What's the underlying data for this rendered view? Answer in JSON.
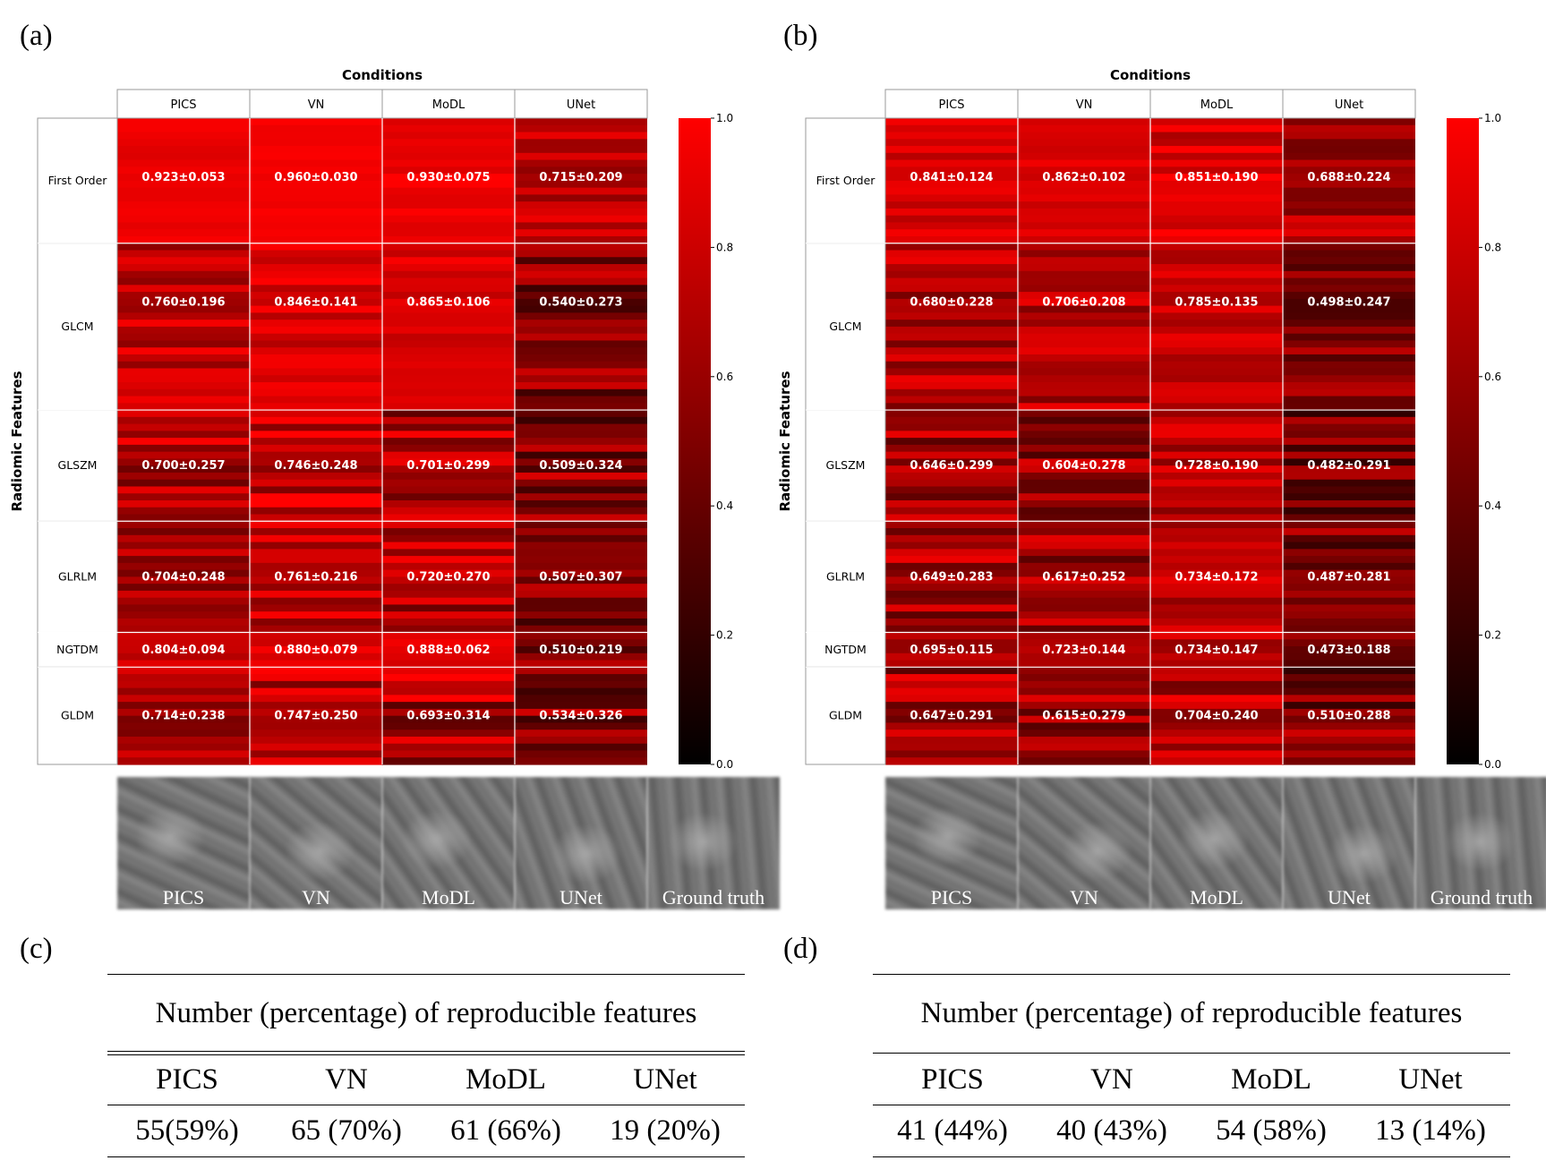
{
  "panels": {
    "a": "(a)",
    "b": "(b)",
    "c": "(c)",
    "d": "(d)"
  },
  "chart_data": [
    {
      "type": "heatmap",
      "panel": "(a)",
      "xlabel": "Conditions",
      "ylabel": "Radiomic Features",
      "columns": [
        "PICS",
        "VN",
        "MoDL",
        "UNet"
      ],
      "groups": [
        "First Order",
        "GLCM",
        "GLSZM",
        "GLRLM",
        "NGTDM",
        "GLDM"
      ],
      "group_feature_counts": [
        18,
        24,
        16,
        16,
        5,
        14
      ],
      "cell_labels": [
        [
          "0.923±0.053",
          "0.960±0.030",
          "0.930±0.075",
          "0.715±0.209"
        ],
        [
          "0.760±0.196",
          "0.846±0.141",
          "0.865±0.106",
          "0.540±0.273"
        ],
        [
          "0.700±0.257",
          "0.746±0.248",
          "0.701±0.299",
          "0.509±0.324"
        ],
        [
          "0.704±0.248",
          "0.761±0.216",
          "0.720±0.270",
          "0.507±0.307"
        ],
        [
          "0.804±0.094",
          "0.880±0.079",
          "0.888±0.062",
          "0.510±0.219"
        ],
        [
          "0.714±0.238",
          "0.747±0.250",
          "0.693±0.314",
          "0.534±0.326"
        ]
      ],
      "means": [
        [
          0.923,
          0.96,
          0.93,
          0.715
        ],
        [
          0.76,
          0.846,
          0.865,
          0.54
        ],
        [
          0.7,
          0.746,
          0.701,
          0.509
        ],
        [
          0.704,
          0.761,
          0.72,
          0.507
        ],
        [
          0.804,
          0.88,
          0.888,
          0.51
        ],
        [
          0.714,
          0.747,
          0.693,
          0.534
        ]
      ],
      "stds": [
        [
          0.053,
          0.03,
          0.075,
          0.209
        ],
        [
          0.196,
          0.141,
          0.106,
          0.273
        ],
        [
          0.257,
          0.248,
          0.299,
          0.324
        ],
        [
          0.248,
          0.216,
          0.27,
          0.307
        ],
        [
          0.094,
          0.079,
          0.062,
          0.219
        ],
        [
          0.238,
          0.25,
          0.314,
          0.326
        ]
      ],
      "colorbar_ticks": [
        "0.0",
        "0.2",
        "0.4",
        "0.6",
        "0.8",
        "1.0"
      ],
      "colorbar_range": [
        0,
        1
      ],
      "colormap": [
        "#000000",
        "#ff0000"
      ]
    },
    {
      "type": "heatmap",
      "panel": "(b)",
      "xlabel": "Conditions",
      "ylabel": "Radiomic Features",
      "columns": [
        "PICS",
        "VN",
        "MoDL",
        "UNet"
      ],
      "groups": [
        "First Order",
        "GLCM",
        "GLSZM",
        "GLRLM",
        "NGTDM",
        "GLDM"
      ],
      "group_feature_counts": [
        18,
        24,
        16,
        16,
        5,
        14
      ],
      "cell_labels": [
        [
          "0.841±0.124",
          "0.862±0.102",
          "0.851±0.190",
          "0.688±0.224"
        ],
        [
          "0.680±0.228",
          "0.706±0.208",
          "0.785±0.135",
          "0.498±0.247"
        ],
        [
          "0.646±0.299",
          "0.604±0.278",
          "0.728±0.190",
          "0.482±0.291"
        ],
        [
          "0.649±0.283",
          "0.617±0.252",
          "0.734±0.172",
          "0.487±0.281"
        ],
        [
          "0.695±0.115",
          "0.723±0.144",
          "0.734±0.147",
          "0.473±0.188"
        ],
        [
          "0.647±0.291",
          "0.615±0.279",
          "0.704±0.240",
          "0.510±0.288"
        ]
      ],
      "means": [
        [
          0.841,
          0.862,
          0.851,
          0.688
        ],
        [
          0.68,
          0.706,
          0.785,
          0.498
        ],
        [
          0.646,
          0.604,
          0.728,
          0.482
        ],
        [
          0.649,
          0.617,
          0.734,
          0.487
        ],
        [
          0.695,
          0.723,
          0.734,
          0.473
        ],
        [
          0.647,
          0.615,
          0.704,
          0.51
        ]
      ],
      "stds": [
        [
          0.124,
          0.102,
          0.19,
          0.224
        ],
        [
          0.228,
          0.208,
          0.135,
          0.247
        ],
        [
          0.299,
          0.278,
          0.19,
          0.291
        ],
        [
          0.283,
          0.252,
          0.172,
          0.281
        ],
        [
          0.115,
          0.144,
          0.147,
          0.188
        ],
        [
          0.291,
          0.279,
          0.24,
          0.288
        ]
      ],
      "colorbar_ticks": [
        "0.0",
        "0.2",
        "0.4",
        "0.6",
        "0.8",
        "1.0"
      ],
      "colorbar_range": [
        0,
        1
      ],
      "colormap": [
        "#000000",
        "#ff0000"
      ]
    }
  ],
  "patches": {
    "a": [
      "PICS",
      "VN",
      "MoDL",
      "UNet",
      "Ground truth"
    ],
    "b": [
      "PICS",
      "VN",
      "MoDL",
      "UNet",
      "Ground truth"
    ]
  },
  "tables": {
    "c": {
      "title": "Number (percentage) of reproducible features",
      "headers": [
        "PICS",
        "VN",
        "MoDL",
        "UNet"
      ],
      "values": [
        "55(59%)",
        "65 (70%)",
        "61 (66%)",
        "19 (20%)"
      ]
    },
    "d": {
      "title": "Number (percentage) of reproducible features",
      "headers": [
        "PICS",
        "VN",
        "MoDL",
        "UNet"
      ],
      "values": [
        "41 (44%)",
        "40 (43%)",
        "54 (58%)",
        "13 (14%)"
      ]
    }
  }
}
